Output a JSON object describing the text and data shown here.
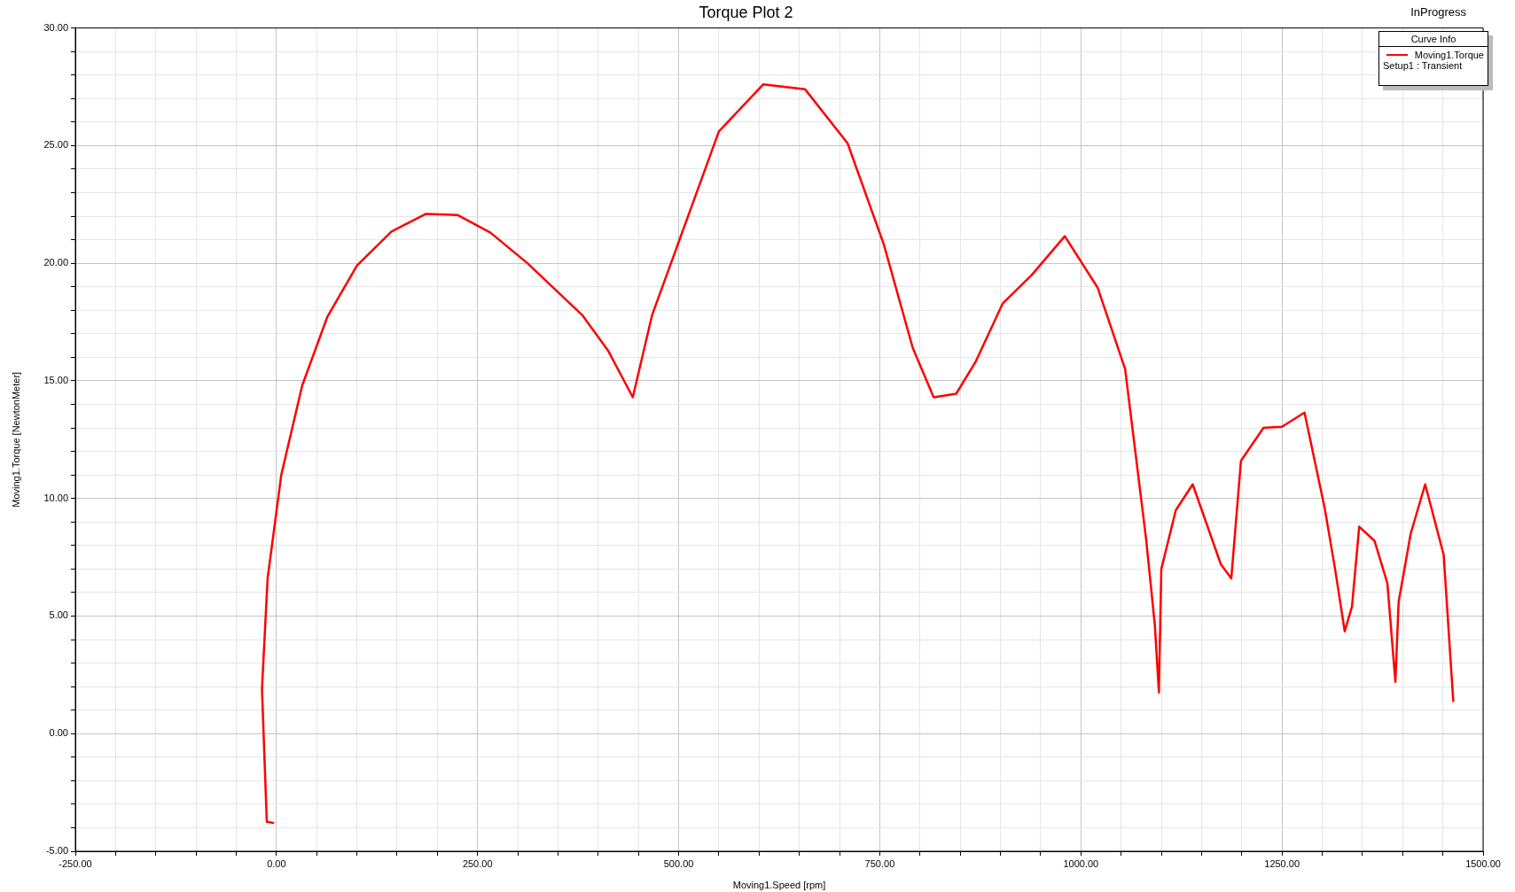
{
  "chart_data": {
    "type": "line",
    "title": "Torque Plot 2",
    "xlabel": "Moving1.Speed [rpm]",
    "ylabel": "Moving1.Torque [NewtonMeter]",
    "legend_title": "Curve Info",
    "legend": "top right",
    "grid": true,
    "marker": "none",
    "line_style": "solid",
    "annotations": [
      "InProgress",
      "Setup1 : Transient"
    ],
    "xlim": [
      -250,
      1500
    ],
    "xticks": [
      {
        "value": -250,
        "label": "-250.00"
      },
      {
        "value": -200,
        "label": null
      },
      {
        "value": -150,
        "label": null
      },
      {
        "value": -100,
        "label": null
      },
      {
        "value": -50,
        "label": null
      },
      {
        "value": 0,
        "label": "0.00"
      },
      {
        "value": 50,
        "label": null
      },
      {
        "value": 100,
        "label": null
      },
      {
        "value": 150,
        "label": null
      },
      {
        "value": 200,
        "label": null
      },
      {
        "value": 250,
        "label": "250.00"
      },
      {
        "value": 300,
        "label": null
      },
      {
        "value": 350,
        "label": null
      },
      {
        "value": 400,
        "label": null
      },
      {
        "value": 450,
        "label": null
      },
      {
        "value": 500,
        "label": "500.00"
      },
      {
        "value": 550,
        "label": null
      },
      {
        "value": 600,
        "label": null
      },
      {
        "value": 650,
        "label": null
      },
      {
        "value": 700,
        "label": null
      },
      {
        "value": 750,
        "label": "750.00"
      },
      {
        "value": 800,
        "label": null
      },
      {
        "value": 850,
        "label": null
      },
      {
        "value": 900,
        "label": null
      },
      {
        "value": 950,
        "label": null
      },
      {
        "value": 1000,
        "label": "1000.00"
      },
      {
        "value": 1050,
        "label": null
      },
      {
        "value": 1100,
        "label": null
      },
      {
        "value": 1150,
        "label": null
      },
      {
        "value": 1200,
        "label": null
      },
      {
        "value": 1250,
        "label": "1250.00"
      },
      {
        "value": 1300,
        "label": null
      },
      {
        "value": 1350,
        "label": null
      },
      {
        "value": 1400,
        "label": null
      },
      {
        "value": 1450,
        "label": null
      },
      {
        "value": 1500,
        "label": "1500.00"
      }
    ],
    "ylim": [
      -5,
      30
    ],
    "yticks": [
      {
        "value": -5,
        "label": "-5.00"
      },
      {
        "value": -4,
        "label": null
      },
      {
        "value": -3,
        "label": null
      },
      {
        "value": -2,
        "label": null
      },
      {
        "value": -1,
        "label": null
      },
      {
        "value": 0,
        "label": "0.00"
      },
      {
        "value": 1,
        "label": null
      },
      {
        "value": 2,
        "label": null
      },
      {
        "value": 3,
        "label": null
      },
      {
        "value": 4,
        "label": null
      },
      {
        "value": 5,
        "label": "5.00"
      },
      {
        "value": 6,
        "label": null
      },
      {
        "value": 7,
        "label": null
      },
      {
        "value": 8,
        "label": null
      },
      {
        "value": 9,
        "label": null
      },
      {
        "value": 10,
        "label": "10.00"
      },
      {
        "value": 11,
        "label": null
      },
      {
        "value": 12,
        "label": null
      },
      {
        "value": 13,
        "label": null
      },
      {
        "value": 14,
        "label": null
      },
      {
        "value": 15,
        "label": "15.00"
      },
      {
        "value": 16,
        "label": null
      },
      {
        "value": 17,
        "label": null
      },
      {
        "value": 18,
        "label": null
      },
      {
        "value": 19,
        "label": null
      },
      {
        "value": 20,
        "label": "20.00"
      },
      {
        "value": 21,
        "label": null
      },
      {
        "value": 22,
        "label": null
      },
      {
        "value": 23,
        "label": null
      },
      {
        "value": 24,
        "label": null
      },
      {
        "value": 25,
        "label": "25.00"
      },
      {
        "value": 26,
        "label": null
      },
      {
        "value": 27,
        "label": null
      },
      {
        "value": 28,
        "label": null
      },
      {
        "value": 29,
        "label": null
      },
      {
        "value": 30,
        "label": "30.00"
      }
    ],
    "series": [
      {
        "name": "Moving1.Torque",
        "color": "#ff0000",
        "x": [
          -3,
          -12,
          -18,
          -11,
          6,
          32,
          63,
          100,
          143,
          186,
          225,
          266,
          312,
          380,
          412,
          443,
          467,
          500,
          550,
          605,
          657,
          710,
          755,
          791,
          817,
          845,
          869,
          903,
          939,
          980,
          1021,
          1055,
          1081,
          1092,
          1097,
          1100,
          1118,
          1139,
          1174,
          1187,
          1199,
          1227,
          1250,
          1278,
          1303,
          1316,
          1328,
          1337,
          1346,
          1365,
          1381,
          1391,
          1395,
          1410,
          1428,
          1451,
          1463
        ],
        "values": [
          -3.8,
          -3.75,
          1.9,
          6.6,
          11.0,
          14.8,
          17.7,
          19.9,
          21.35,
          22.1,
          22.05,
          21.3,
          20.0,
          17.8,
          16.3,
          14.3,
          17.8,
          20.9,
          25.6,
          27.6,
          27.4,
          25.1,
          20.8,
          16.4,
          14.3,
          14.45,
          15.8,
          18.3,
          19.5,
          21.15,
          18.95,
          15.5,
          8.3,
          4.6,
          1.75,
          7.0,
          9.5,
          10.6,
          7.2,
          6.6,
          11.6,
          13.0,
          13.05,
          13.65,
          9.6,
          7.0,
          4.35,
          5.4,
          8.8,
          8.2,
          6.4,
          2.2,
          5.6,
          8.5,
          10.6,
          7.6,
          1.35
        ]
      }
    ]
  }
}
